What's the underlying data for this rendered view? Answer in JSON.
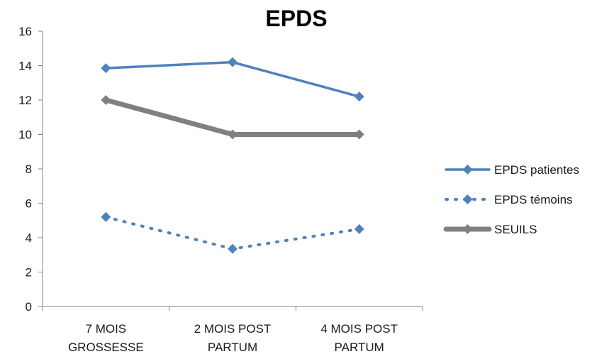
{
  "chart_data": {
    "type": "line",
    "title": "EPDS",
    "xlabel": "",
    "ylabel": "",
    "categories": [
      [
        "7 MOIS",
        "GROSSESSE"
      ],
      [
        "2 MOIS POST",
        "PARTUM"
      ],
      [
        "4 MOIS POST",
        "PARTUM"
      ]
    ],
    "ylim": [
      0,
      16
    ],
    "yticks": [
      "0",
      "2",
      "4",
      "6",
      "8",
      "10",
      "12",
      "14",
      "16"
    ],
    "grid": false,
    "legend_position": "right",
    "series": [
      {
        "name": "EPDS patientes",
        "values": [
          13.85,
          14.2,
          12.2
        ],
        "color": "#4f81bd",
        "dash": "solid",
        "width": 3.5
      },
      {
        "name": "EPDS témoins",
        "values": [
          5.2,
          3.35,
          4.5
        ],
        "color": "#4f81bd",
        "dash": "dotted",
        "width": 4
      },
      {
        "name": "SEUILS",
        "values": [
          12,
          10,
          10
        ],
        "color": "#808080",
        "dash": "solid",
        "width": 7
      }
    ]
  }
}
